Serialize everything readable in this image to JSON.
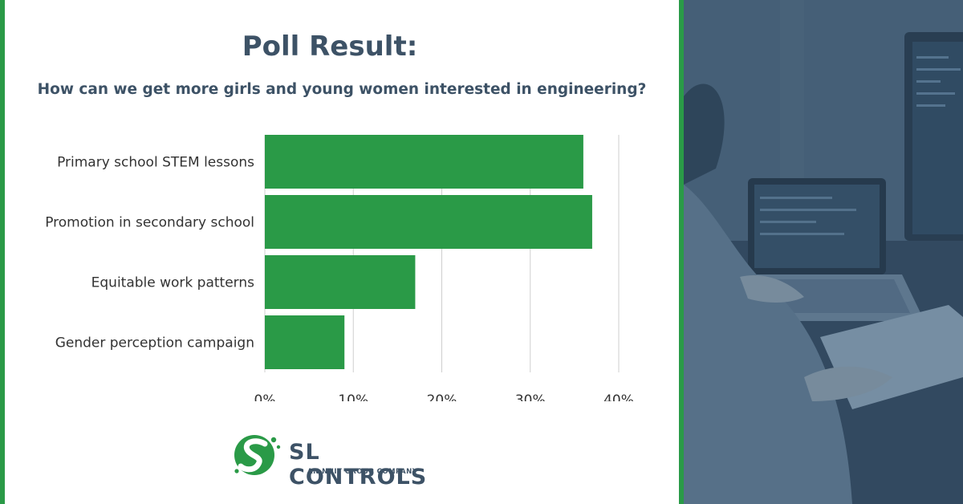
{
  "header": {
    "title": "Poll Result:",
    "subtitle": "How can we get more girls and young women interested in engineering?"
  },
  "chart_data": {
    "type": "bar",
    "orientation": "horizontal",
    "title": "",
    "xlabel": "",
    "ylabel": "",
    "categories": [
      "Primary school STEM lessons",
      "Promotion in secondary school",
      "Equitable work patterns",
      "Gender perception campaign"
    ],
    "values": [
      36,
      37,
      17,
      9
    ],
    "xlim": [
      0,
      40
    ],
    "ticks": [
      0,
      10,
      20,
      30,
      40
    ],
    "tick_labels": [
      "0%",
      "10%",
      "20%",
      "30%",
      "40%"
    ],
    "grid": "vertical",
    "legend": "none",
    "bar_color": "#2a9a47"
  },
  "logo": {
    "name": "SL CONTROLS",
    "tagline": "AN NNIT GROUP COMPANY"
  },
  "colors": {
    "accent": "#2a9a47",
    "heading": "#3d5266",
    "photo_tint": "#3b5670"
  },
  "photo": {
    "icon": "person-at-laptop-photo"
  }
}
